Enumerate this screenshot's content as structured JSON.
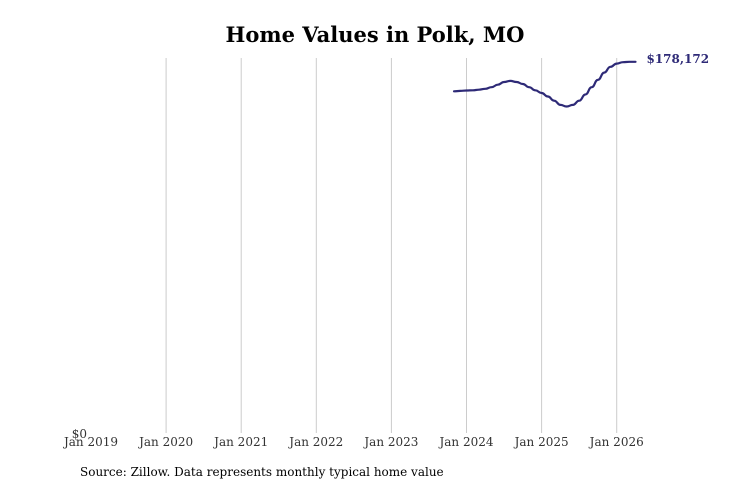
{
  "chart_data": {
    "type": "line",
    "title": "Home Values in Polk, MO",
    "xlabel": "",
    "ylabel": "",
    "x_ticks": [
      "Jan 2019",
      "Jan 2020",
      "Jan 2021",
      "Jan 2022",
      "Jan 2023",
      "Jan 2024",
      "Jan 2025",
      "Jan 2026"
    ],
    "y_ticks": [
      "$0"
    ],
    "xlim": [
      "2019-01",
      "2026-06"
    ],
    "ylim": [
      0,
      180000
    ],
    "grid": "vertical",
    "series": [
      {
        "color": "#2e2a77",
        "points": [
          [
            "2023-11",
            164000
          ],
          [
            "2023-12",
            164200
          ],
          [
            "2024-01",
            164400
          ],
          [
            "2024-02",
            164500
          ],
          [
            "2024-03",
            164800
          ],
          [
            "2024-04",
            165200
          ],
          [
            "2024-05",
            166000
          ],
          [
            "2024-06",
            167200
          ],
          [
            "2024-07",
            168500
          ],
          [
            "2024-08",
            169000
          ],
          [
            "2024-09",
            168500
          ],
          [
            "2024-10",
            167500
          ],
          [
            "2024-11",
            166000
          ],
          [
            "2024-12",
            164500
          ],
          [
            "2025-01",
            163200
          ],
          [
            "2025-02",
            161500
          ],
          [
            "2025-03",
            159500
          ],
          [
            "2025-04",
            157500
          ],
          [
            "2025-05",
            156700
          ],
          [
            "2025-06",
            157500
          ],
          [
            "2025-07",
            159500
          ],
          [
            "2025-08",
            162500
          ],
          [
            "2025-09",
            166000
          ],
          [
            "2025-10",
            169500
          ],
          [
            "2025-11",
            173000
          ],
          [
            "2025-12",
            175800
          ],
          [
            "2026-01",
            177300
          ],
          [
            "2026-02",
            178000
          ],
          [
            "2026-03",
            178200
          ],
          [
            "2026-04",
            178172
          ]
        ]
      }
    ],
    "end_label": "$178,172",
    "line_color": "#2e2a77",
    "grid_color": "#cccccc"
  },
  "source": "Source: Zillow. Data represents monthly typical home value"
}
